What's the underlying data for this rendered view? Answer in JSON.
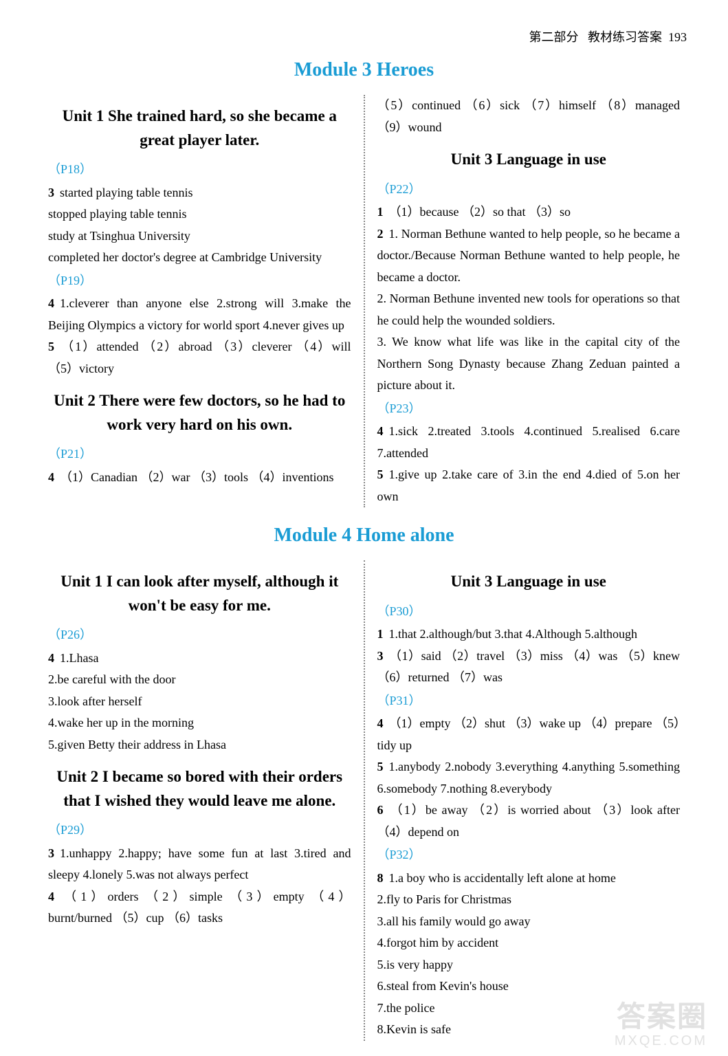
{
  "header": {
    "section": "第二部分",
    "title": "教材练习答案",
    "page": "193"
  },
  "colors": {
    "accent": "#1a9cd4",
    "text": "#000000",
    "bg": "#ffffff",
    "divider": "#888888",
    "watermark": "rgba(200,200,200,0.55)"
  },
  "module3": {
    "title": "Module 3   Heroes",
    "unit1": {
      "title": "Unit 1   She trained hard, so she became a great player later.",
      "p18": "（P18）",
      "q3_lines": [
        "started playing table tennis",
        "stopped playing table tennis",
        "study at Tsinghua University",
        "completed her doctor's degree at Cambridge University"
      ],
      "p19": "（P19）",
      "q4": "1.cleverer than anyone else   2.strong will   3.make the Beijing Olympics a victory for world sport   4.never gives up",
      "q5": "（1）attended （2）abroad （3）cleverer （4）will （5）victory"
    },
    "unit2": {
      "title": "Unit 2   There were few doctors, so he had to work very hard on his own.",
      "p21": "（P21）",
      "q4": "（1）Canadian （2）war （3）tools （4）inventions",
      "cont": "（5）continued （6）sick （7）himself （8）managed （9）wound"
    },
    "unit3": {
      "title": "Unit 3   Language in use",
      "p22": "（P22）",
      "q1": "（1）because （2）so that （3）so",
      "q2_1": "1. Norman Bethune wanted to help people, so he became a doctor./Because Norman Bethune wanted to help people, he became a doctor.",
      "q2_2": "2. Norman Bethune invented new tools for operations so that he could help the wounded soldiers.",
      "q2_3": "3. We know what life was like in the capital city of the Northern Song Dynasty because Zhang Zeduan painted a picture about it.",
      "p23": "（P23）",
      "q4": "1.sick   2.treated   3.tools   4.continued   5.realised   6.care   7.attended",
      "q5": "1.give up   2.take care of   3.in the end   4.died of   5.on her own"
    }
  },
  "module4": {
    "title": "Module 4   Home alone",
    "unit1": {
      "title": "Unit 1   I can look after myself, although it won't be easy for me.",
      "p26": "（P26）",
      "q4_lines": [
        "1.Lhasa",
        "2.be careful with the door",
        "3.look after herself",
        "4.wake her up in the morning",
        "5.given Betty their address in Lhasa"
      ]
    },
    "unit2": {
      "title": "Unit 2   I became so bored with their orders that I wished they would leave me alone.",
      "p29": "（P29）",
      "q3": "1.unhappy   2.happy; have some fun at last   3.tired and sleepy   4.lonely   5.was not always perfect",
      "q4": "（1）orders （2）simple （3）empty （4）burnt/burned （5）cup （6）tasks"
    },
    "unit3": {
      "title": "Unit 3   Language in use",
      "p30": "（P30）",
      "q1": "1.that   2.although/but   3.that   4.Although   5.although",
      "q3": "（1）said （2）travel （3）miss （4）was （5）knew （6）returned （7）was",
      "p31": "（P31）",
      "q4": "（1）empty （2）shut （3）wake up （4）prepare （5）tidy up",
      "q5": "1.anybody   2.nobody   3.everything   4.anything   5.something   6.somebody   7.nothing   8.everybody",
      "q6": "（1）be away （2）is worried about （3）look after （4）depend on",
      "p32": "（P32）",
      "q8_lines": [
        "1.a boy who is accidentally left alone at home",
        "2.fly to Paris for Christmas",
        "3.all his family would go away",
        "4.forgot him by accident",
        "5.is very happy",
        "6.steal from Kevin's house",
        "7.the police",
        "8.Kevin is safe"
      ]
    }
  },
  "watermark": {
    "main": "答案圈",
    "sub": "MXQE.COM"
  }
}
